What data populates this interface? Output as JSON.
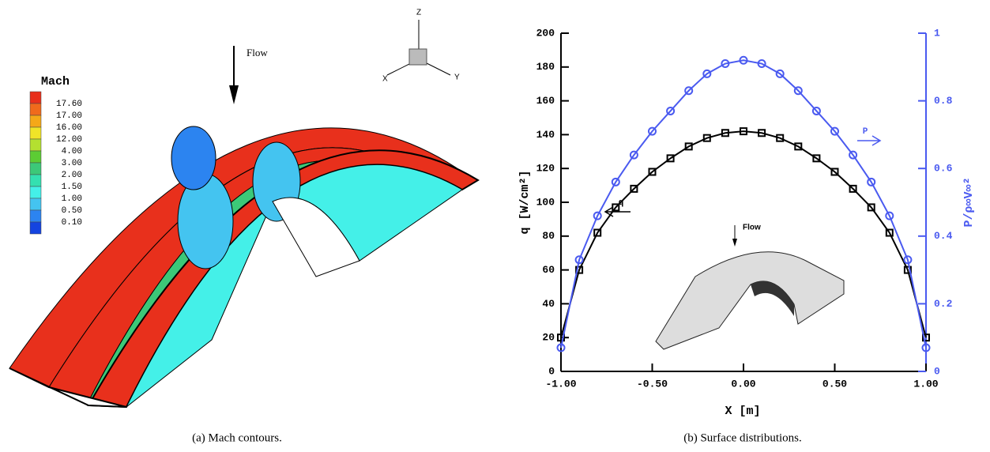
{
  "left_panel": {
    "legend_title": "Mach",
    "legend_labels": [
      "17.60",
      "17.00",
      "16.00",
      "12.00",
      "4.00",
      "3.00",
      "2.00",
      "1.50",
      "1.00",
      "0.50",
      "0.10"
    ],
    "legend_colors": [
      "#e8301c",
      "#f06a1c",
      "#f5a818",
      "#f0e428",
      "#b4e030",
      "#5ccc34",
      "#3cc878",
      "#34e0b0",
      "#44f0e8",
      "#44c4f0",
      "#2c84f0",
      "#1444e0"
    ],
    "flow_label": "Flow",
    "triad": [
      "X",
      "Y",
      "Z"
    ],
    "caption": "(a) Mach contours."
  },
  "chart_data": {
    "type": "line",
    "xlabel": "X  [m]",
    "ylabel": "q  [W/cm²]",
    "y2label": "P/ρ∞V∞²",
    "x": [
      -1.0,
      -0.9,
      -0.8,
      -0.7,
      -0.6,
      -0.5,
      -0.4,
      -0.3,
      -0.2,
      -0.1,
      0.0,
      0.1,
      0.2,
      0.3,
      0.4,
      0.5,
      0.6,
      0.7,
      0.8,
      0.9,
      1.0
    ],
    "series": [
      {
        "name": "q",
        "color": "#000000",
        "marker": "square",
        "values": [
          20,
          60,
          82,
          97,
          108,
          118,
          126,
          133,
          138,
          141,
          142,
          141,
          138,
          133,
          126,
          118,
          108,
          97,
          82,
          60,
          20
        ]
      },
      {
        "name": "P",
        "color": "#4a5af0",
        "marker": "circle",
        "axis": "y2",
        "values": [
          0.07,
          0.33,
          0.46,
          0.56,
          0.64,
          0.71,
          0.77,
          0.83,
          0.88,
          0.91,
          0.92,
          0.91,
          0.88,
          0.83,
          0.77,
          0.71,
          0.64,
          0.56,
          0.46,
          0.33,
          0.07
        ]
      }
    ],
    "xlim": [
      -1,
      1
    ],
    "xticks": [
      {
        "value": -1,
        "label": "-1.00"
      },
      {
        "value": -0.5,
        "label": "-0.50"
      },
      {
        "value": 0,
        "label": "0.00"
      },
      {
        "value": 0.5,
        "label": "0.50"
      },
      {
        "value": 1,
        "label": "1.00"
      }
    ],
    "ylim": [
      0,
      200
    ],
    "yticks": [
      0,
      20,
      40,
      60,
      80,
      100,
      120,
      140,
      160,
      180,
      200
    ],
    "y2lim": [
      0,
      1
    ],
    "y2ticks": [
      0,
      0.2,
      0.4,
      0.6,
      0.8,
      1
    ],
    "inset_label": "Flow",
    "caption": "(b) Surface distributions."
  }
}
